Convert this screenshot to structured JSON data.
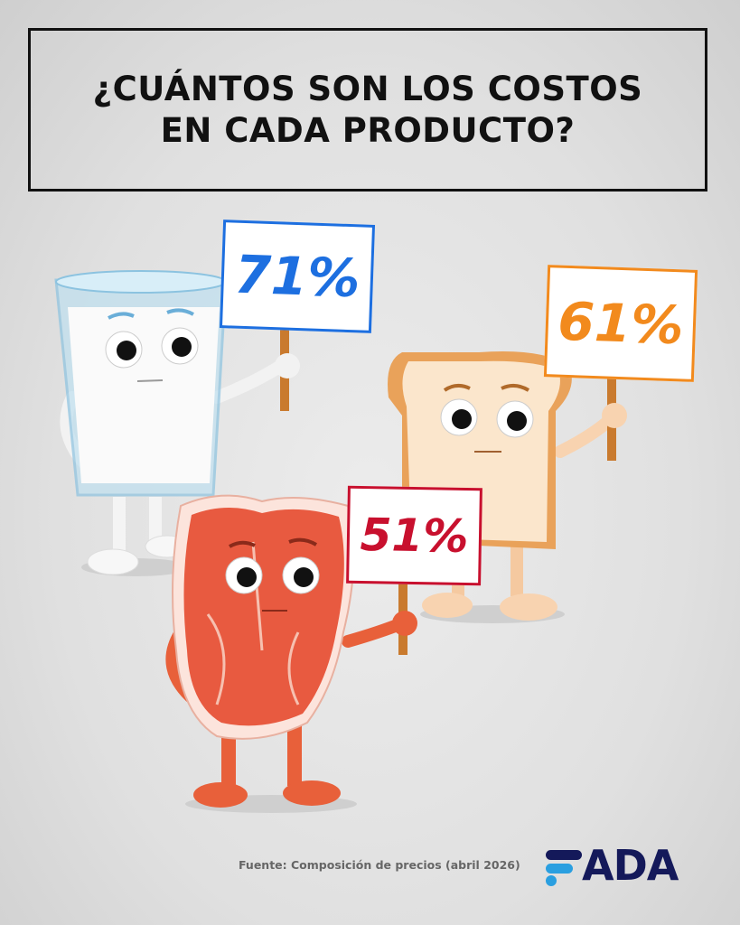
{
  "title": {
    "line1": "¿CUÁNTOS SON LOS COSTOS",
    "line2": "EN CADA PRODUCTO?"
  },
  "products": [
    {
      "name": "milk",
      "percent_label": "71%",
      "value": 71,
      "color": "#1d6fe0"
    },
    {
      "name": "bread",
      "percent_label": "61%",
      "value": 61,
      "color": "#f28a1d"
    },
    {
      "name": "meat",
      "percent_label": "51%",
      "value": 51,
      "color": "#c8102e"
    }
  ],
  "footer": {
    "source": "Fuente: Composición de precios (abril 2026)"
  },
  "logo": {
    "text": "FADA",
    "colors": {
      "navy": "#14195a",
      "light_blue": "#2a9fe0"
    }
  }
}
